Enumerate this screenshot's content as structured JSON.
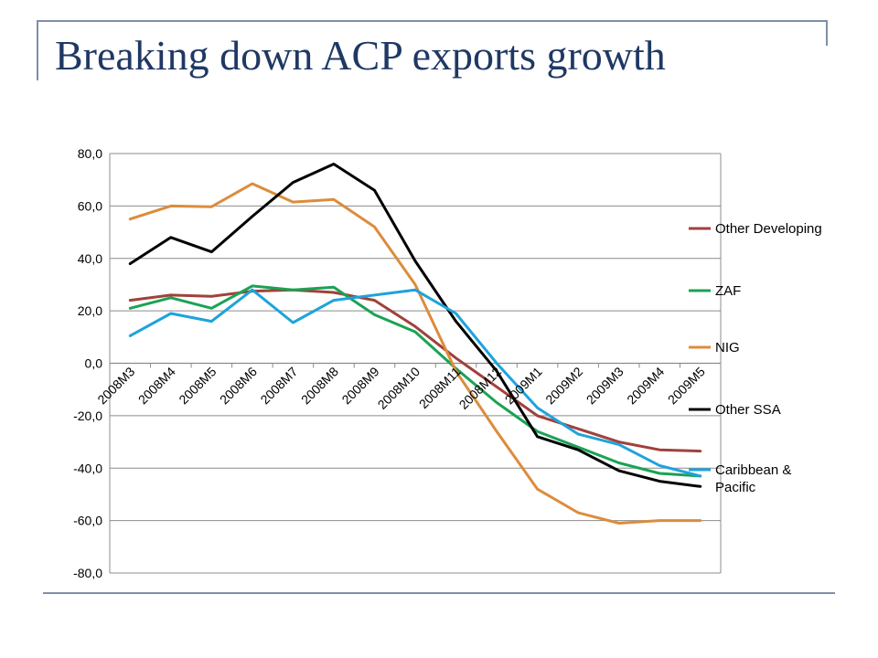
{
  "title": "Breaking down ACP exports growth",
  "chart_data": {
    "type": "line",
    "categories": [
      "2008M3",
      "2008M4",
      "2008M5",
      "2008M6",
      "2008M7",
      "2008M8",
      "2008M9",
      "2008M10",
      "2008M11",
      "2008M12",
      "2009M1",
      "2009M2",
      "2009M3",
      "2009M4",
      "2009M5"
    ],
    "ylim": [
      -80,
      80
    ],
    "y_ticks": [
      "80,0",
      "60,0",
      "40,0",
      "20,0",
      "0,0",
      "-20,0",
      "-40,0",
      "-60,0",
      "-80,0"
    ],
    "grid": true,
    "legend_position": "right",
    "series": [
      {
        "name": "Other Developing",
        "color": "#a0413b",
        "values": [
          24,
          26,
          25.5,
          27.5,
          28,
          27,
          24,
          14,
          2,
          -9,
          -20,
          -25,
          -30,
          -33,
          -33.5
        ]
      },
      {
        "name": "ZAF",
        "color": "#1aa354",
        "values": [
          21,
          25,
          21,
          29.5,
          28,
          29,
          18.5,
          12,
          -2,
          -15,
          -26,
          -32,
          -38,
          -42,
          -43
        ]
      },
      {
        "name": "NIG",
        "color": "#dc8c3c",
        "values": [
          55,
          60,
          59.7,
          68.5,
          61.5,
          62.5,
          52,
          30,
          -3,
          -26,
          -48,
          -57,
          -61,
          -60,
          -60
        ]
      },
      {
        "name": "Other SSA",
        "color": "#000000",
        "values": [
          38,
          48,
          42.5,
          56,
          69,
          76,
          66,
          39,
          16,
          -3,
          -28,
          -33,
          -41,
          -45,
          -47
        ]
      },
      {
        "name": "Caribbean & Pacific",
        "color": "#1ea3dc",
        "values": [
          10.5,
          19,
          16,
          28,
          15.5,
          24,
          26,
          28,
          19,
          0,
          -17,
          -27,
          -31,
          -39,
          -43
        ]
      }
    ]
  }
}
